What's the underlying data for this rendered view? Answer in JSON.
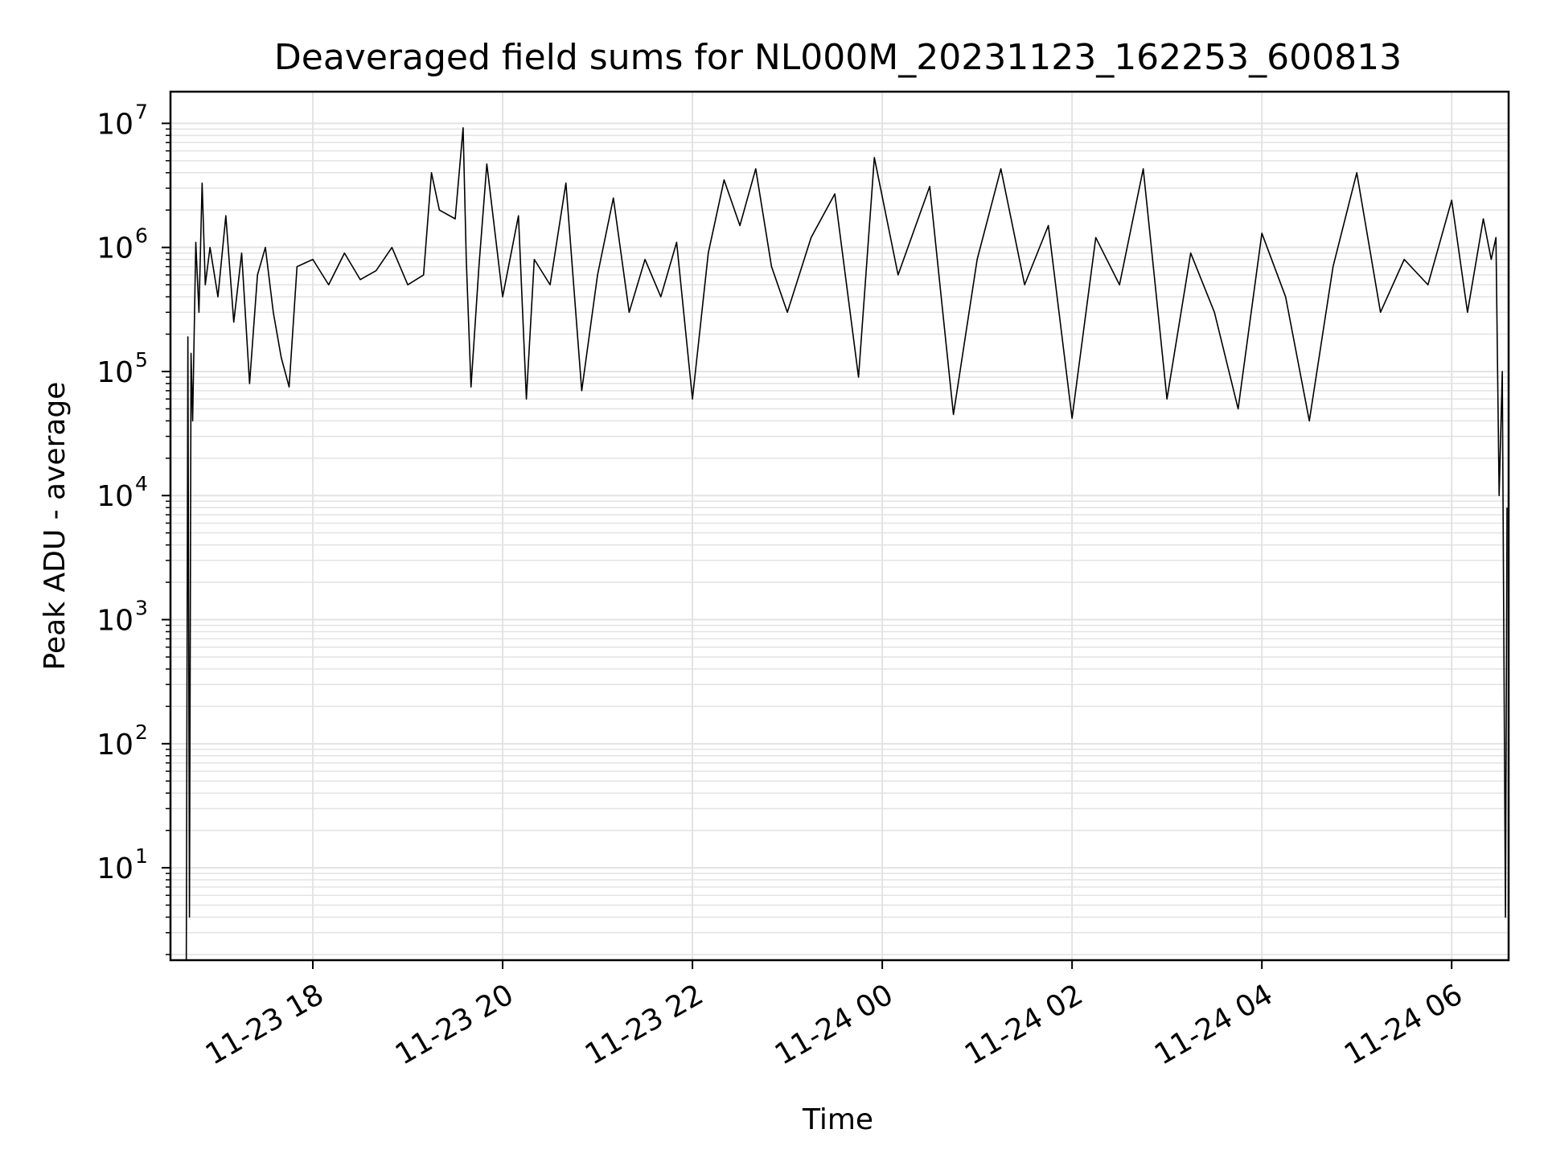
{
  "chart_data": {
    "type": "line",
    "title": "Deaveraged field sums for NL000M_20231123_162253_600813",
    "xlabel": "Time",
    "ylabel": "Peak ADU - average",
    "x_axis": {
      "type": "time",
      "range": [
        "2023-11-23 16:30",
        "2023-11-24 06:36"
      ],
      "ticks": [
        {
          "value": "2023-11-23 18:00",
          "label": "11-23 18"
        },
        {
          "value": "2023-11-23 20:00",
          "label": "11-23 20"
        },
        {
          "value": "2023-11-23 22:00",
          "label": "11-23 22"
        },
        {
          "value": "2023-11-24 00:00",
          "label": "11-24 00"
        },
        {
          "value": "2023-11-24 02:00",
          "label": "11-24 02"
        },
        {
          "value": "2023-11-24 04:00",
          "label": "11-24 04"
        },
        {
          "value": "2023-11-24 06:00",
          "label": "11-24 06"
        }
      ]
    },
    "y_axis": {
      "scale": "log",
      "range": [
        1.8,
        18000000
      ],
      "ticks": [
        {
          "value": 10,
          "base": "10",
          "exp": "1"
        },
        {
          "value": 100,
          "base": "10",
          "exp": "2"
        },
        {
          "value": 1000,
          "base": "10",
          "exp": "3"
        },
        {
          "value": 10000,
          "base": "10",
          "exp": "4"
        },
        {
          "value": 100000,
          "base": "10",
          "exp": "5"
        },
        {
          "value": 1000000,
          "base": "10",
          "exp": "6"
        },
        {
          "value": 10000000,
          "base": "10",
          "exp": "7"
        }
      ]
    },
    "grid": true,
    "line_color": "#000000",
    "grid_color": "#e3e3e3",
    "series": [
      {
        "points": [
          [
            "2023-11-23 16:40",
            1.8
          ],
          [
            "2023-11-23 16:41",
            190000
          ],
          [
            "2023-11-23 16:42",
            4
          ],
          [
            "2023-11-23 16:43",
            140000
          ],
          [
            "2023-11-23 16:44",
            40000
          ],
          [
            "2023-11-23 16:46",
            1100000
          ],
          [
            "2023-11-23 16:48",
            300000
          ],
          [
            "2023-11-23 16:50",
            3300000
          ],
          [
            "2023-11-23 16:52",
            500000
          ],
          [
            "2023-11-23 16:55",
            1000000
          ],
          [
            "2023-11-23 17:00",
            400000
          ],
          [
            "2023-11-23 17:05",
            1800000
          ],
          [
            "2023-11-23 17:10",
            250000
          ],
          [
            "2023-11-23 17:15",
            900000
          ],
          [
            "2023-11-23 17:20",
            80000
          ],
          [
            "2023-11-23 17:25",
            600000
          ],
          [
            "2023-11-23 17:30",
            1000000
          ],
          [
            "2023-11-23 17:35",
            300000
          ],
          [
            "2023-11-23 17:40",
            130000
          ],
          [
            "2023-11-23 17:45",
            75000
          ],
          [
            "2023-11-23 17:50",
            700000
          ],
          [
            "2023-11-23 18:00",
            800000
          ],
          [
            "2023-11-23 18:10",
            500000
          ],
          [
            "2023-11-23 18:20",
            900000
          ],
          [
            "2023-11-23 18:30",
            550000
          ],
          [
            "2023-11-23 18:40",
            650000
          ],
          [
            "2023-11-23 18:50",
            1000000
          ],
          [
            "2023-11-23 19:00",
            500000
          ],
          [
            "2023-11-23 19:10",
            600000
          ],
          [
            "2023-11-23 19:15",
            4000000
          ],
          [
            "2023-11-23 19:20",
            2000000
          ],
          [
            "2023-11-23 19:30",
            1700000
          ],
          [
            "2023-11-23 19:35",
            9200000
          ],
          [
            "2023-11-23 19:37",
            800000
          ],
          [
            "2023-11-23 19:40",
            75000
          ],
          [
            "2023-11-23 19:45",
            700000
          ],
          [
            "2023-11-23 19:50",
            4700000
          ],
          [
            "2023-11-23 20:00",
            400000
          ],
          [
            "2023-11-23 20:10",
            1800000
          ],
          [
            "2023-11-23 20:15",
            60000
          ],
          [
            "2023-11-23 20:20",
            800000
          ],
          [
            "2023-11-23 20:30",
            500000
          ],
          [
            "2023-11-23 20:40",
            3300000
          ],
          [
            "2023-11-23 20:50",
            70000
          ],
          [
            "2023-11-23 21:00",
            600000
          ],
          [
            "2023-11-23 21:10",
            2500000
          ],
          [
            "2023-11-23 21:20",
            300000
          ],
          [
            "2023-11-23 21:30",
            800000
          ],
          [
            "2023-11-23 21:40",
            400000
          ],
          [
            "2023-11-23 21:50",
            1100000
          ],
          [
            "2023-11-23 22:00",
            60000
          ],
          [
            "2023-11-23 22:10",
            900000
          ],
          [
            "2023-11-23 22:20",
            3500000
          ],
          [
            "2023-11-23 22:30",
            1500000
          ],
          [
            "2023-11-23 22:40",
            4300000
          ],
          [
            "2023-11-23 22:50",
            700000
          ],
          [
            "2023-11-23 23:00",
            300000
          ],
          [
            "2023-11-23 23:15",
            1200000
          ],
          [
            "2023-11-23 23:30",
            2700000
          ],
          [
            "2023-11-23 23:45",
            90000
          ],
          [
            "2023-11-23 23:55",
            5300000
          ],
          [
            "2023-11-24 00:10",
            600000
          ],
          [
            "2023-11-24 00:30",
            3100000
          ],
          [
            "2023-11-24 00:45",
            45000
          ],
          [
            "2023-11-24 01:00",
            800000
          ],
          [
            "2023-11-24 01:15",
            4300000
          ],
          [
            "2023-11-24 01:30",
            500000
          ],
          [
            "2023-11-24 01:45",
            1500000
          ],
          [
            "2023-11-24 02:00",
            42000
          ],
          [
            "2023-11-24 02:15",
            1200000
          ],
          [
            "2023-11-24 02:30",
            500000
          ],
          [
            "2023-11-24 02:45",
            4300000
          ],
          [
            "2023-11-24 03:00",
            60000
          ],
          [
            "2023-11-24 03:15",
            900000
          ],
          [
            "2023-11-24 03:30",
            300000
          ],
          [
            "2023-11-24 03:45",
            50000
          ],
          [
            "2023-11-24 04:00",
            1300000
          ],
          [
            "2023-11-24 04:15",
            400000
          ],
          [
            "2023-11-24 04:30",
            40000
          ],
          [
            "2023-11-24 04:45",
            700000
          ],
          [
            "2023-11-24 05:00",
            4000000
          ],
          [
            "2023-11-24 05:15",
            300000
          ],
          [
            "2023-11-24 05:30",
            800000
          ],
          [
            "2023-11-24 05:45",
            500000
          ],
          [
            "2023-11-24 06:00",
            2400000
          ],
          [
            "2023-11-24 06:10",
            300000
          ],
          [
            "2023-11-24 06:20",
            1700000
          ],
          [
            "2023-11-24 06:25",
            800000
          ],
          [
            "2023-11-24 06:28",
            1200000
          ],
          [
            "2023-11-24 06:30",
            10000
          ],
          [
            "2023-11-24 06:32",
            100000
          ],
          [
            "2023-11-24 06:34",
            4
          ],
          [
            "2023-11-24 06:35",
            8000
          ]
        ]
      }
    ]
  }
}
